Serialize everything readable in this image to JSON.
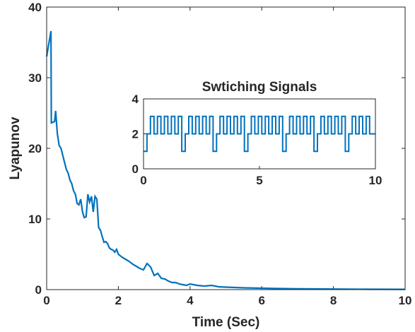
{
  "chart_data": [
    {
      "type": "line",
      "title": "",
      "xlabel": "Time (Sec)",
      "ylabel": "Lyapunov",
      "xlim": [
        0,
        10
      ],
      "ylim": [
        0,
        40
      ],
      "xticks": [
        0,
        2,
        4,
        6,
        8,
        10
      ],
      "yticks": [
        0,
        10,
        20,
        30,
        40
      ],
      "grid": false,
      "color": "#0072bd",
      "series": [
        {
          "x": [
            0,
            0.05,
            0.12,
            0.13,
            0.22,
            0.25,
            0.3,
            0.35,
            0.4,
            0.45,
            0.5,
            0.55,
            0.6,
            0.65,
            0.7,
            0.75,
            0.8,
            0.85,
            0.9,
            0.95,
            1.0,
            1.05,
            1.1,
            1.15,
            1.2,
            1.25,
            1.3,
            1.35,
            1.4,
            1.45,
            1.5,
            1.55,
            1.6,
            1.65,
            1.7,
            1.75,
            1.8,
            1.85,
            1.9,
            1.95,
            2.0,
            2.1,
            2.2,
            2.3,
            2.4,
            2.5,
            2.6,
            2.7,
            2.8,
            2.9,
            3.0,
            3.1,
            3.2,
            3.3,
            3.4,
            3.5,
            3.6,
            3.7,
            3.8,
            3.9,
            4.0,
            4.2,
            4.4,
            4.6,
            4.8,
            5.0,
            5.5,
            6.0,
            6.5,
            7.0,
            7.5,
            8.0,
            9.0,
            10.0
          ],
          "y": [
            33,
            34.5,
            36.6,
            23.6,
            23.8,
            25.3,
            22,
            20.4,
            20,
            19,
            18,
            17,
            16.5,
            15.5,
            15,
            14,
            13.5,
            12.2,
            12,
            12.8,
            11,
            10.2,
            10.3,
            13.5,
            12.4,
            13.2,
            11,
            13.2,
            12.8,
            8.8,
            8.4,
            7.5,
            6.7,
            6.8,
            6.5,
            5.9,
            5.7,
            5.6,
            5.3,
            5.7,
            5.0,
            4.6,
            4.3,
            4.0,
            3.6,
            3.3,
            3.0,
            2.8,
            3.7,
            3.2,
            2.0,
            2.3,
            1.6,
            1.5,
            1.2,
            1.0,
            1.0,
            0.8,
            0.7,
            0.6,
            0.8,
            0.6,
            0.5,
            0.6,
            0.4,
            0.35,
            0.25,
            0.2,
            0.15,
            0.12,
            0.1,
            0.08,
            0.05,
            0.04
          ]
        }
      ]
    },
    {
      "type": "line",
      "title": "Swtiching Signals",
      "xlabel": "",
      "ylabel": "",
      "xlim": [
        0,
        10
      ],
      "ylim": [
        0,
        4
      ],
      "xticks": [
        0,
        5,
        10
      ],
      "yticks": [
        0,
        2,
        4
      ],
      "grid": false,
      "color": "#0072bd",
      "series": [
        {
          "switch_times": [
            0,
            0.15,
            0.3,
            0.45,
            0.6,
            0.75,
            0.9,
            1.05,
            1.2,
            1.35,
            1.5,
            1.65,
            1.8,
            1.95,
            2.1,
            2.25,
            2.4,
            2.55,
            2.7,
            2.85,
            3.0,
            3.15,
            3.3,
            3.45,
            3.6,
            3.75,
            3.9,
            4.05,
            4.2,
            4.35,
            4.5,
            4.65,
            4.8,
            4.95,
            5.1,
            5.25,
            5.4,
            5.55,
            5.7,
            5.85,
            6.0,
            6.15,
            6.3,
            6.45,
            6.6,
            6.75,
            6.9,
            7.05,
            7.2,
            7.35,
            7.5,
            7.65,
            7.8,
            7.95,
            8.1,
            8.25,
            8.4,
            8.55,
            8.7,
            8.85,
            9.0,
            9.15,
            9.3,
            9.45,
            9.6,
            9.75,
            9.9
          ],
          "levels": [
            1,
            2,
            3,
            2,
            3,
            2,
            3,
            2,
            3,
            2,
            3,
            1,
            2,
            3,
            2,
            3,
            2,
            3,
            2,
            3,
            1,
            2,
            3,
            2,
            3,
            2,
            3,
            2,
            3,
            1,
            2,
            3,
            2,
            3,
            2,
            3,
            2,
            3,
            2,
            3,
            1,
            2,
            3,
            2,
            3,
            2,
            3,
            2,
            3,
            1,
            2,
            3,
            2,
            3,
            2,
            3,
            2,
            3,
            1,
            2,
            3,
            2,
            3,
            2,
            3,
            2,
            2
          ]
        }
      ]
    }
  ]
}
